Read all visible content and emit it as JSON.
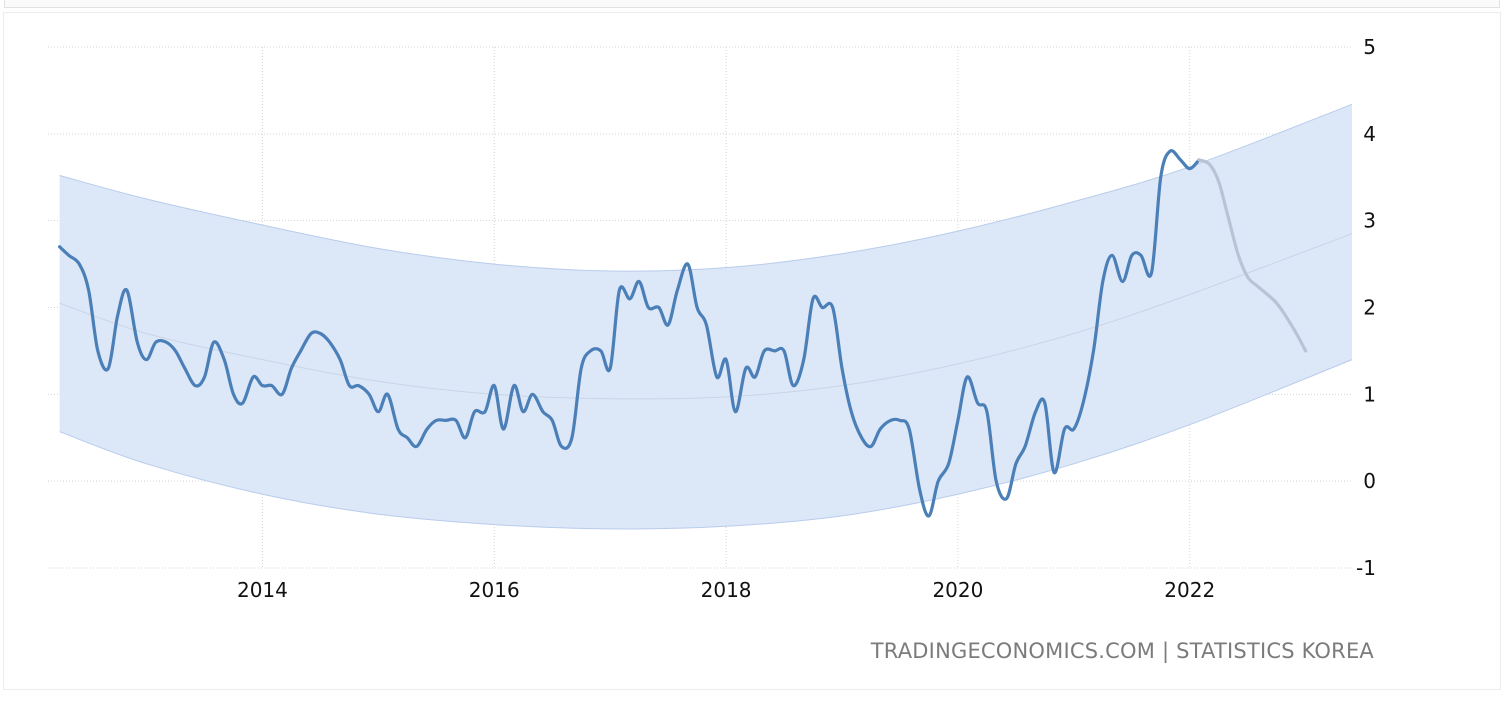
{
  "source": {
    "site": "TRADINGECONOMICS.COM",
    "separator": "|",
    "provider": "STATISTICS KOREA"
  },
  "colors": {
    "history_line": "#4b7fb8",
    "forecast_line": "#b9c3d6",
    "band_fill": "#dce7f7",
    "band_edge": "#b8ccec",
    "trend_line": "#c9d5e6",
    "grid": "#d4d4d4"
  },
  "chart_data": {
    "type": "line",
    "title": "",
    "xlabel": "",
    "ylabel": "",
    "xlim": [
      2012.15,
      2023.4
    ],
    "ylim": [
      -1,
      5
    ],
    "x_ticks": [
      2014,
      2016,
      2018,
      2020,
      2022
    ],
    "x_tick_labels": [
      "2014",
      "2016",
      "2018",
      "2020",
      "2022"
    ],
    "y_ticks": [
      5,
      4,
      3,
      2,
      1,
      0,
      -1
    ],
    "y_tick_labels": [
      "5",
      "4",
      "3",
      "2",
      "1",
      "0",
      "-1"
    ],
    "y_axis_position": "right",
    "grid": true,
    "series": [
      {
        "role": "history",
        "x": [
          2012.25,
          2012.33,
          2012.42,
          2012.5,
          2012.58,
          2012.67,
          2012.75,
          2012.83,
          2012.92,
          2013.0,
          2013.08,
          2013.17,
          2013.25,
          2013.33,
          2013.42,
          2013.5,
          2013.58,
          2013.67,
          2013.75,
          2013.83,
          2013.92,
          2014.0,
          2014.08,
          2014.17,
          2014.25,
          2014.33,
          2014.42,
          2014.5,
          2014.58,
          2014.67,
          2014.75,
          2014.83,
          2014.92,
          2015.0,
          2015.08,
          2015.17,
          2015.25,
          2015.33,
          2015.42,
          2015.5,
          2015.58,
          2015.67,
          2015.75,
          2015.83,
          2015.92,
          2016.0,
          2016.08,
          2016.17,
          2016.25,
          2016.33,
          2016.42,
          2016.5,
          2016.58,
          2016.67,
          2016.75,
          2016.83,
          2016.92,
          2017.0,
          2017.08,
          2017.17,
          2017.25,
          2017.33,
          2017.42,
          2017.5,
          2017.58,
          2017.67,
          2017.75,
          2017.83,
          2017.92,
          2018.0,
          2018.08,
          2018.17,
          2018.25,
          2018.33,
          2018.42,
          2018.5,
          2018.58,
          2018.67,
          2018.75,
          2018.83,
          2018.92,
          2019.0,
          2019.08,
          2019.17,
          2019.25,
          2019.33,
          2019.42,
          2019.5,
          2019.58,
          2019.67,
          2019.75,
          2019.83,
          2019.92,
          2020.0,
          2020.08,
          2020.17,
          2020.25,
          2020.33,
          2020.42,
          2020.5,
          2020.58,
          2020.67,
          2020.75,
          2020.83,
          2020.92,
          2021.0,
          2021.08,
          2021.17,
          2021.25,
          2021.33,
          2021.42,
          2021.5,
          2021.58,
          2021.67,
          2021.75,
          2021.83,
          2021.92,
          2022.0,
          2022.08
        ],
        "y": [
          2.7,
          2.6,
          2.5,
          2.2,
          1.5,
          1.3,
          1.9,
          2.2,
          1.6,
          1.4,
          1.6,
          1.6,
          1.5,
          1.3,
          1.1,
          1.2,
          1.6,
          1.4,
          1.0,
          0.9,
          1.2,
          1.1,
          1.1,
          1.0,
          1.3,
          1.5,
          1.7,
          1.7,
          1.6,
          1.4,
          1.1,
          1.1,
          1.0,
          0.8,
          1.0,
          0.6,
          0.5,
          0.4,
          0.6,
          0.7,
          0.7,
          0.7,
          0.5,
          0.8,
          0.8,
          1.1,
          0.6,
          1.1,
          0.8,
          1.0,
          0.8,
          0.7,
          0.4,
          0.5,
          1.3,
          1.5,
          1.5,
          1.3,
          2.2,
          2.1,
          2.3,
          2.0,
          2.0,
          1.8,
          2.2,
          2.5,
          2.0,
          1.8,
          1.2,
          1.4,
          0.8,
          1.3,
          1.2,
          1.5,
          1.5,
          1.5,
          1.1,
          1.4,
          2.1,
          2.0,
          2.0,
          1.3,
          0.8,
          0.5,
          0.4,
          0.6,
          0.7,
          0.7,
          0.6,
          -0.1,
          -0.4,
          0.0,
          0.2,
          0.7,
          1.2,
          0.9,
          0.8,
          0.0,
          -0.2,
          0.2,
          0.4,
          0.8,
          0.9,
          0.1,
          0.6,
          0.6,
          0.9,
          1.5,
          2.3,
          2.6,
          2.3,
          2.6,
          2.6,
          2.4,
          3.5,
          3.8,
          3.7,
          3.6,
          3.7
        ]
      },
      {
        "role": "forecast",
        "x": [
          2022.08,
          2022.17,
          2022.25,
          2022.33,
          2022.42,
          2022.5,
          2022.58,
          2022.67,
          2022.75,
          2022.83,
          2022.92,
          2023.0
        ],
        "y": [
          3.7,
          3.65,
          3.45,
          3.05,
          2.6,
          2.35,
          2.25,
          2.15,
          2.05,
          1.9,
          1.7,
          1.5
        ]
      }
    ],
    "band": {
      "x": [
        2012.25,
        2013,
        2014,
        2015,
        2016,
        2017,
        2018,
        2019,
        2020,
        2021,
        2022,
        2023.4
      ],
      "upper": [
        3.52,
        3.25,
        2.95,
        2.68,
        2.5,
        2.42,
        2.46,
        2.62,
        2.88,
        3.22,
        3.62,
        4.34
      ],
      "mid": [
        2.05,
        1.7,
        1.4,
        1.15,
        1.0,
        0.95,
        0.97,
        1.1,
        1.35,
        1.7,
        2.15,
        2.85
      ],
      "lower": [
        0.57,
        0.2,
        -0.15,
        -0.38,
        -0.5,
        -0.55,
        -0.52,
        -0.4,
        -0.15,
        0.2,
        0.65,
        1.4
      ]
    }
  }
}
